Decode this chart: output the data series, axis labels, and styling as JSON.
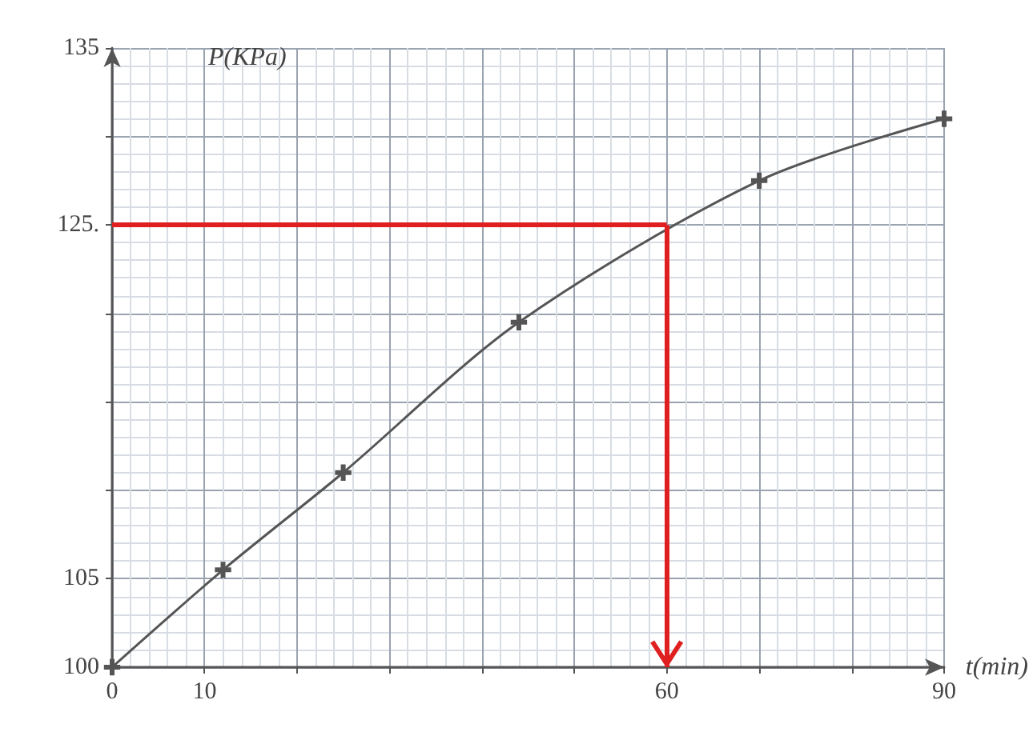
{
  "chart_data": {
    "type": "line",
    "xlabel": "t(min)",
    "ylabel": "P(KPa)",
    "x": [
      0,
      12,
      25,
      44,
      70,
      90
    ],
    "series": [
      {
        "color": "#555555",
        "values": [
          100,
          105.5,
          111,
          119.5,
          127.5,
          131
        ]
      }
    ],
    "xlim": [
      0,
      90
    ],
    "ylim": [
      100,
      135
    ],
    "xticks": [
      0,
      10,
      {
        "value": 20,
        "label": null
      },
      {
        "value": 30,
        "label": null
      },
      {
        "value": 40,
        "label": null
      },
      {
        "value": 50,
        "label": null
      },
      60,
      {
        "value": 70,
        "label": null
      },
      {
        "value": 80,
        "label": null
      },
      90
    ],
    "yticks": [
      100,
      105,
      {
        "value": 110,
        "label": null
      },
      {
        "value": 115,
        "label": null
      },
      {
        "value": 120,
        "label": null
      },
      {
        "value": 125,
        "label": "125."
      },
      {
        "value": 130,
        "label": null
      },
      135
    ],
    "ref_lines": [
      {
        "axis": "y",
        "value": 125,
        "color": "#e02020"
      },
      {
        "axis": "x",
        "value": 60,
        "color": "#e02020"
      }
    ],
    "grid": true,
    "marker": "cross",
    "line_style": "solid"
  }
}
